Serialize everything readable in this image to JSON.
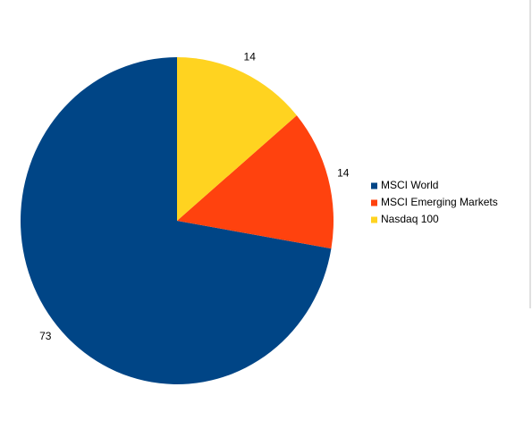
{
  "chart_data": {
    "type": "pie",
    "categories": [
      "MSCI World",
      "MSCI Emerging Markets",
      "Nasdaq 100"
    ],
    "values": [
      73,
      14,
      14
    ],
    "colors": [
      "#004586",
      "#ff420e",
      "#ffd320"
    ],
    "legend": "right"
  }
}
